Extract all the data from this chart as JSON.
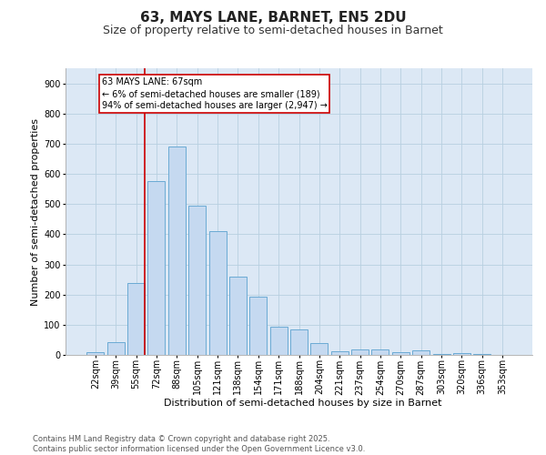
{
  "title": "63, MAYS LANE, BARNET, EN5 2DU",
  "subtitle": "Size of property relative to semi-detached houses in Barnet",
  "xlabel": "Distribution of semi-detached houses by size in Barnet",
  "ylabel": "Number of semi-detached properties",
  "categories": [
    "22sqm",
    "39sqm",
    "55sqm",
    "72sqm",
    "88sqm",
    "105sqm",
    "121sqm",
    "138sqm",
    "154sqm",
    "171sqm",
    "188sqm",
    "204sqm",
    "221sqm",
    "237sqm",
    "254sqm",
    "270sqm",
    "287sqm",
    "303sqm",
    "320sqm",
    "336sqm",
    "353sqm"
  ],
  "values": [
    8,
    42,
    238,
    575,
    690,
    495,
    410,
    260,
    193,
    95,
    83,
    38,
    13,
    18,
    18,
    10,
    15,
    2,
    5,
    2,
    1
  ],
  "bar_color": "#c5d9f0",
  "bar_edge_color": "#6aaad4",
  "vline_index": 2,
  "annotation_text_line1": "63 MAYS LANE: 67sqm",
  "annotation_text_line2": "← 6% of semi-detached houses are smaller (189)",
  "annotation_text_line3": "94% of semi-detached houses are larger (2,947) →",
  "vline_color": "#cc0000",
  "annotation_box_edge_color": "#cc0000",
  "background_color": "#ffffff",
  "plot_bg_color": "#dce8f5",
  "grid_color": "#b8cfe0",
  "ylim": [
    0,
    950
  ],
  "yticks": [
    0,
    100,
    200,
    300,
    400,
    500,
    600,
    700,
    800,
    900
  ],
  "title_fontsize": 11,
  "subtitle_fontsize": 9,
  "xlabel_fontsize": 8,
  "ylabel_fontsize": 8,
  "tick_fontsize": 7,
  "annotation_fontsize": 7,
  "footnote_fontsize": 6,
  "footnote_line1": "Contains HM Land Registry data © Crown copyright and database right 2025.",
  "footnote_line2": "Contains public sector information licensed under the Open Government Licence v3.0."
}
